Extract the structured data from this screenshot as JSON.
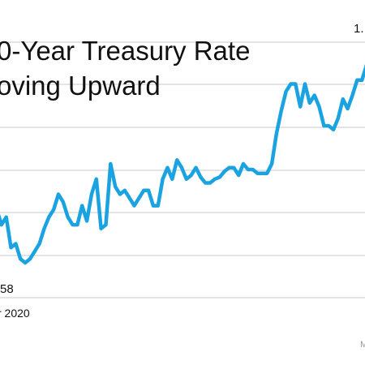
{
  "chart_data": {
    "type": "line",
    "title_line1": "0-Year Treasury Rate",
    "title_line2": "oving Upward",
    "x_label": "r 2020",
    "start_value_label": "58",
    "end_value_label": "1.",
    "watermark": "M",
    "grid": true,
    "series": [
      {
        "color": "#1aa3e0",
        "values": [
          0.82,
          0.74,
          0.78,
          0.62,
          0.64,
          0.56,
          0.54,
          0.56,
          0.6,
          0.64,
          0.72,
          0.78,
          0.82,
          0.9,
          0.86,
          0.78,
          0.74,
          0.74,
          0.84,
          0.76,
          0.9,
          0.98,
          0.72,
          0.74,
          1.06,
          0.94,
          0.9,
          0.92,
          0.88,
          0.84,
          0.88,
          0.92,
          0.92,
          0.84,
          0.84,
          0.98,
          1.04,
          0.98,
          1.08,
          1.04,
          0.98,
          1.0,
          1.04,
          0.99,
          0.96,
          0.96,
          0.98,
          0.99,
          1.02,
          1.04,
          1.04,
          1.0,
          1.06,
          1.03,
          1.03,
          1.01,
          1.01,
          1.01,
          1.06,
          1.22,
          1.34,
          1.44,
          1.48,
          1.48,
          1.36,
          1.48,
          1.38,
          1.42,
          1.36,
          1.26,
          1.26,
          1.24,
          1.3,
          1.4,
          1.35,
          1.42,
          1.5,
          1.5,
          1.58
        ]
      }
    ]
  }
}
